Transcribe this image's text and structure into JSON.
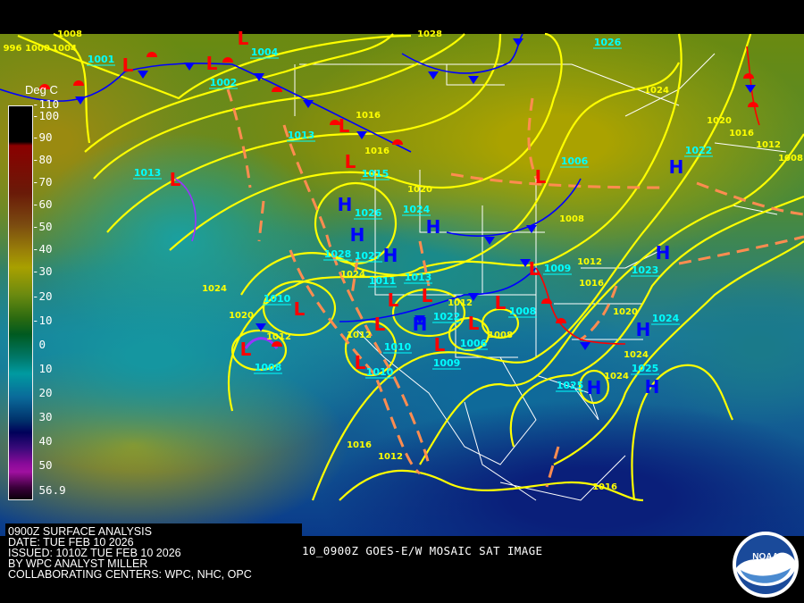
{
  "info": {
    "lines": [
      "0900Z SURFACE ANALYSIS",
      "DATE: TUE FEB 10 2026",
      "ISSUED: 1010Z TUE FEB 10 2026",
      "BY WPC ANALYST MILLER",
      "COLLABORATING CENTERS: WPC, NHC, OPC"
    ]
  },
  "sat_label": "10_0900Z GOES-E/W MOSAIC SAT IMAGE",
  "logo_text": "NOAA",
  "colorbar": {
    "unit": "Deg C",
    "ticks": [
      "-110",
      "-100",
      "-90",
      "-80",
      "-70",
      "-60",
      "-50",
      "-40",
      "-30",
      "-20",
      "-10",
      "0",
      "10",
      "20",
      "30",
      "40",
      "50",
      "56.9"
    ]
  },
  "colors": {
    "high": "#0000ff",
    "low": "#ff0000",
    "isobar": "#ffff00",
    "center_label": "#00ffff",
    "trough": "#ff8c50",
    "cold_front": "#0000ff",
    "warm_front": "#ff0000",
    "occluded_front": "#9933ff"
  },
  "pressure_systems": [
    {
      "type": "L",
      "pressure": "1001"
    },
    {
      "type": "L",
      "pressure": "1002"
    },
    {
      "type": "L",
      "pressure": "1004"
    },
    {
      "type": "L",
      "pressure": "1013"
    },
    {
      "type": "L",
      "pressure": "1015"
    },
    {
      "type": "L",
      "pressure": "1013"
    },
    {
      "type": "L",
      "pressure": "1006"
    },
    {
      "type": "H",
      "pressure": "1022"
    },
    {
      "type": "H",
      "pressure": "1026"
    },
    {
      "type": "H",
      "pressure": "1028"
    },
    {
      "type": "H",
      "pressure": "1027"
    },
    {
      "type": "H",
      "pressure": "1024"
    },
    {
      "type": "L",
      "pressure": "1009"
    },
    {
      "type": "H",
      "pressure": "1023"
    },
    {
      "type": "L",
      "pressure": "1010"
    },
    {
      "type": "L",
      "pressure": "1011"
    },
    {
      "type": "L",
      "pressure": "1013"
    },
    {
      "type": "H",
      "pressure": "1022"
    },
    {
      "type": "L",
      "pressure": "1010"
    },
    {
      "type": "L",
      "pressure": "1009"
    },
    {
      "type": "L",
      "pressure": "1006"
    },
    {
      "type": "L",
      "pressure": "1008"
    },
    {
      "type": "L",
      "pressure": "1010"
    },
    {
      "type": "L",
      "pressure": "1008"
    },
    {
      "type": "H",
      "pressure": "1024"
    },
    {
      "type": "H",
      "pressure": "1025"
    },
    {
      "type": "H",
      "pressure": "1025"
    },
    {
      "type": "H",
      "pressure": "1026"
    }
  ],
  "isobar_labels": [
    "1008",
    "996",
    "1000",
    "1004",
    "1028",
    "1024",
    "1020",
    "1016",
    "1012",
    "1008",
    "1016",
    "1016",
    "1020",
    "1024",
    "1024",
    "1020",
    "1012",
    "1012",
    "1012",
    "1008",
    "1008",
    "1012",
    "1016",
    "1020",
    "1024",
    "1024",
    "1016",
    "1012",
    "1016"
  ]
}
